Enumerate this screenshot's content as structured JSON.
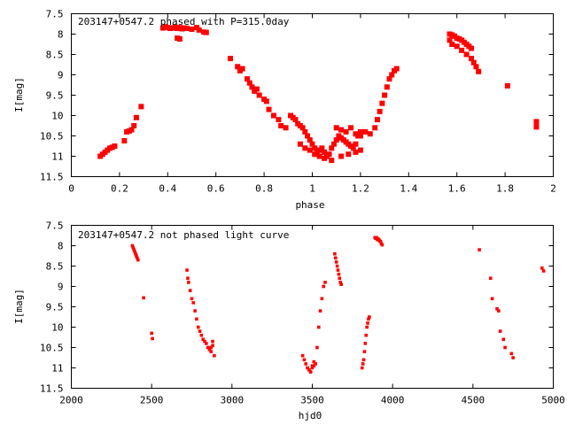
{
  "chart_data": [
    {
      "type": "scatter",
      "title": "203147+0547.2 phased with P=315.0day",
      "xlabel": "phase",
      "ylabel": "I[mag]",
      "xlim": [
        0,
        2
      ],
      "ylim": [
        11.5,
        7.5
      ],
      "y_inverted": true,
      "grid": false,
      "color": "#ff0000",
      "xticks": [
        "0",
        "0.2",
        "0.4",
        "0.6",
        "0.8",
        "1",
        "1.2",
        "1.4",
        "1.6",
        "1.8",
        "2"
      ],
      "yticks": [
        "7.5",
        "8",
        "8.5",
        "9",
        "9.5",
        "10",
        "10.5",
        "11",
        "11.5"
      ],
      "x": [
        0.12,
        0.13,
        0.14,
        0.15,
        0.16,
        0.17,
        0.18,
        0.22,
        0.23,
        0.24,
        0.25,
        0.26,
        0.27,
        0.29,
        0.38,
        0.39,
        0.4,
        0.41,
        0.42,
        0.43,
        0.44,
        0.45,
        0.46,
        0.47,
        0.48,
        0.5,
        0.52,
        0.53,
        0.55,
        0.56,
        0.44,
        0.45,
        0.66,
        0.69,
        0.7,
        0.71,
        0.73,
        0.74,
        0.75,
        0.76,
        0.77,
        0.78,
        0.8,
        0.81,
        0.82,
        0.84,
        0.86,
        0.87,
        0.89,
        0.91,
        0.92,
        0.93,
        0.94,
        0.95,
        0.96,
        0.97,
        0.98,
        0.99,
        1.0,
        1.01,
        1.02,
        1.03,
        1.04,
        1.05,
        1.06,
        1.07,
        1.08,
        1.09,
        1.1,
        1.11,
        1.12,
        1.13,
        1.14,
        1.15,
        1.16,
        1.17,
        1.18,
        1.19,
        1.2,
        0.95,
        0.97,
        0.99,
        1.01,
        1.03,
        1.05,
        1.08,
        1.12,
        1.15,
        1.18,
        1.2,
        1.1,
        1.12,
        1.14,
        1.16,
        1.18,
        1.2,
        1.22,
        1.24,
        1.26,
        1.27,
        1.28,
        1.29,
        1.3,
        1.31,
        1.32,
        1.33,
        1.34,
        1.35,
        1.57,
        1.58,
        1.59,
        1.6,
        1.61,
        1.62,
        1.63,
        1.64,
        1.65,
        1.66,
        1.57,
        1.58,
        1.6,
        1.62,
        1.64,
        1.66,
        1.67,
        1.68,
        1.69,
        1.81,
        1.93,
        1.93
      ],
      "y": [
        11.0,
        10.95,
        10.9,
        10.85,
        10.8,
        10.78,
        10.75,
        10.62,
        10.4,
        10.38,
        10.35,
        10.25,
        10.05,
        9.78,
        7.85,
        7.82,
        7.84,
        7.86,
        7.85,
        7.83,
        7.86,
        7.84,
        7.87,
        7.85,
        7.86,
        7.88,
        7.84,
        7.9,
        7.95,
        7.96,
        8.1,
        8.12,
        8.6,
        8.8,
        8.9,
        8.85,
        9.1,
        9.2,
        9.3,
        9.4,
        9.35,
        9.5,
        9.6,
        9.65,
        9.85,
        10.0,
        10.1,
        10.25,
        10.3,
        10.0,
        10.05,
        10.1,
        10.2,
        10.25,
        10.3,
        10.4,
        10.5,
        10.6,
        10.7,
        10.8,
        10.9,
        10.85,
        10.8,
        10.9,
        11.0,
        10.95,
        10.8,
        10.7,
        10.6,
        10.5,
        10.55,
        10.6,
        10.65,
        10.7,
        10.75,
        10.8,
        10.7,
        10.5,
        10.4,
        10.7,
        10.8,
        10.85,
        10.95,
        11.0,
        11.05,
        11.1,
        11.0,
        10.95,
        10.9,
        10.85,
        10.3,
        10.35,
        10.4,
        10.3,
        10.45,
        10.5,
        10.4,
        10.45,
        10.3,
        10.1,
        9.9,
        9.7,
        9.5,
        9.3,
        9.1,
        9.0,
        8.9,
        8.85,
        8.0,
        8.02,
        8.05,
        8.1,
        8.12,
        8.15,
        8.2,
        8.25,
        8.3,
        8.35,
        8.15,
        8.25,
        8.3,
        8.4,
        8.5,
        8.6,
        8.7,
        8.8,
        8.92,
        9.27,
        10.15,
        10.28
      ]
    },
    {
      "type": "scatter",
      "title": "203147+0547.2 not phased light curve",
      "xlabel": "hjd0",
      "ylabel": "I[mag]",
      "xlim": [
        2000,
        5000
      ],
      "ylim": [
        11.5,
        7.5
      ],
      "y_inverted": true,
      "grid": false,
      "color": "#ff0000",
      "xticks": [
        "2000",
        "2500",
        "3000",
        "3500",
        "4000",
        "4500",
        "5000"
      ],
      "yticks": [
        "7.5",
        "8",
        "8.5",
        "9",
        "9.5",
        "10",
        "10.5",
        "11",
        "11.5"
      ],
      "x": [
        2380,
        2385,
        2390,
        2395,
        2400,
        2405,
        2410,
        2415,
        2450,
        2500,
        2505,
        2720,
        2725,
        2730,
        2740,
        2750,
        2760,
        2770,
        2780,
        2790,
        2800,
        2810,
        2820,
        2830,
        2840,
        2850,
        2860,
        2870,
        2880,
        2890,
        2880,
        2870,
        3440,
        3450,
        3460,
        3470,
        3480,
        3490,
        3500,
        3510,
        3520,
        3530,
        3540,
        3550,
        3560,
        3570,
        3580,
        3490,
        3500,
        3510,
        3640,
        3645,
        3650,
        3655,
        3660,
        3665,
        3670,
        3675,
        3680,
        3810,
        3815,
        3820,
        3825,
        3830,
        3835,
        3840,
        3845,
        3850,
        3855,
        3890,
        3895,
        3900,
        3905,
        3910,
        3915,
        3920,
        3925,
        3930,
        3935,
        4540,
        4610,
        4620,
        4650,
        4660,
        4670,
        4690,
        4700,
        4740,
        4750,
        4930,
        4940
      ],
      "y": [
        8.0,
        8.05,
        8.1,
        8.15,
        8.2,
        8.25,
        8.3,
        8.35,
        9.28,
        10.15,
        10.28,
        8.6,
        8.8,
        8.9,
        9.1,
        9.3,
        9.4,
        9.6,
        9.8,
        10.0,
        10.1,
        10.2,
        10.3,
        10.35,
        10.4,
        10.5,
        10.55,
        10.5,
        10.45,
        10.7,
        10.35,
        10.6,
        10.7,
        10.8,
        10.9,
        11.0,
        11.05,
        11.1,
        11.0,
        10.95,
        10.9,
        10.5,
        10.0,
        9.6,
        9.3,
        9.0,
        8.9,
        11.1,
        10.95,
        10.85,
        8.2,
        8.3,
        8.4,
        8.5,
        8.6,
        8.7,
        8.8,
        8.9,
        8.95,
        11.0,
        10.9,
        10.8,
        10.6,
        10.4,
        10.2,
        10.0,
        9.9,
        9.8,
        9.75,
        7.8,
        7.82,
        7.8,
        7.85,
        7.83,
        7.86,
        7.88,
        7.9,
        7.95,
        7.98,
        8.1,
        8.8,
        9.3,
        9.55,
        9.6,
        10.1,
        10.3,
        10.5,
        10.65,
        10.75,
        8.55,
        8.62
      ]
    }
  ]
}
